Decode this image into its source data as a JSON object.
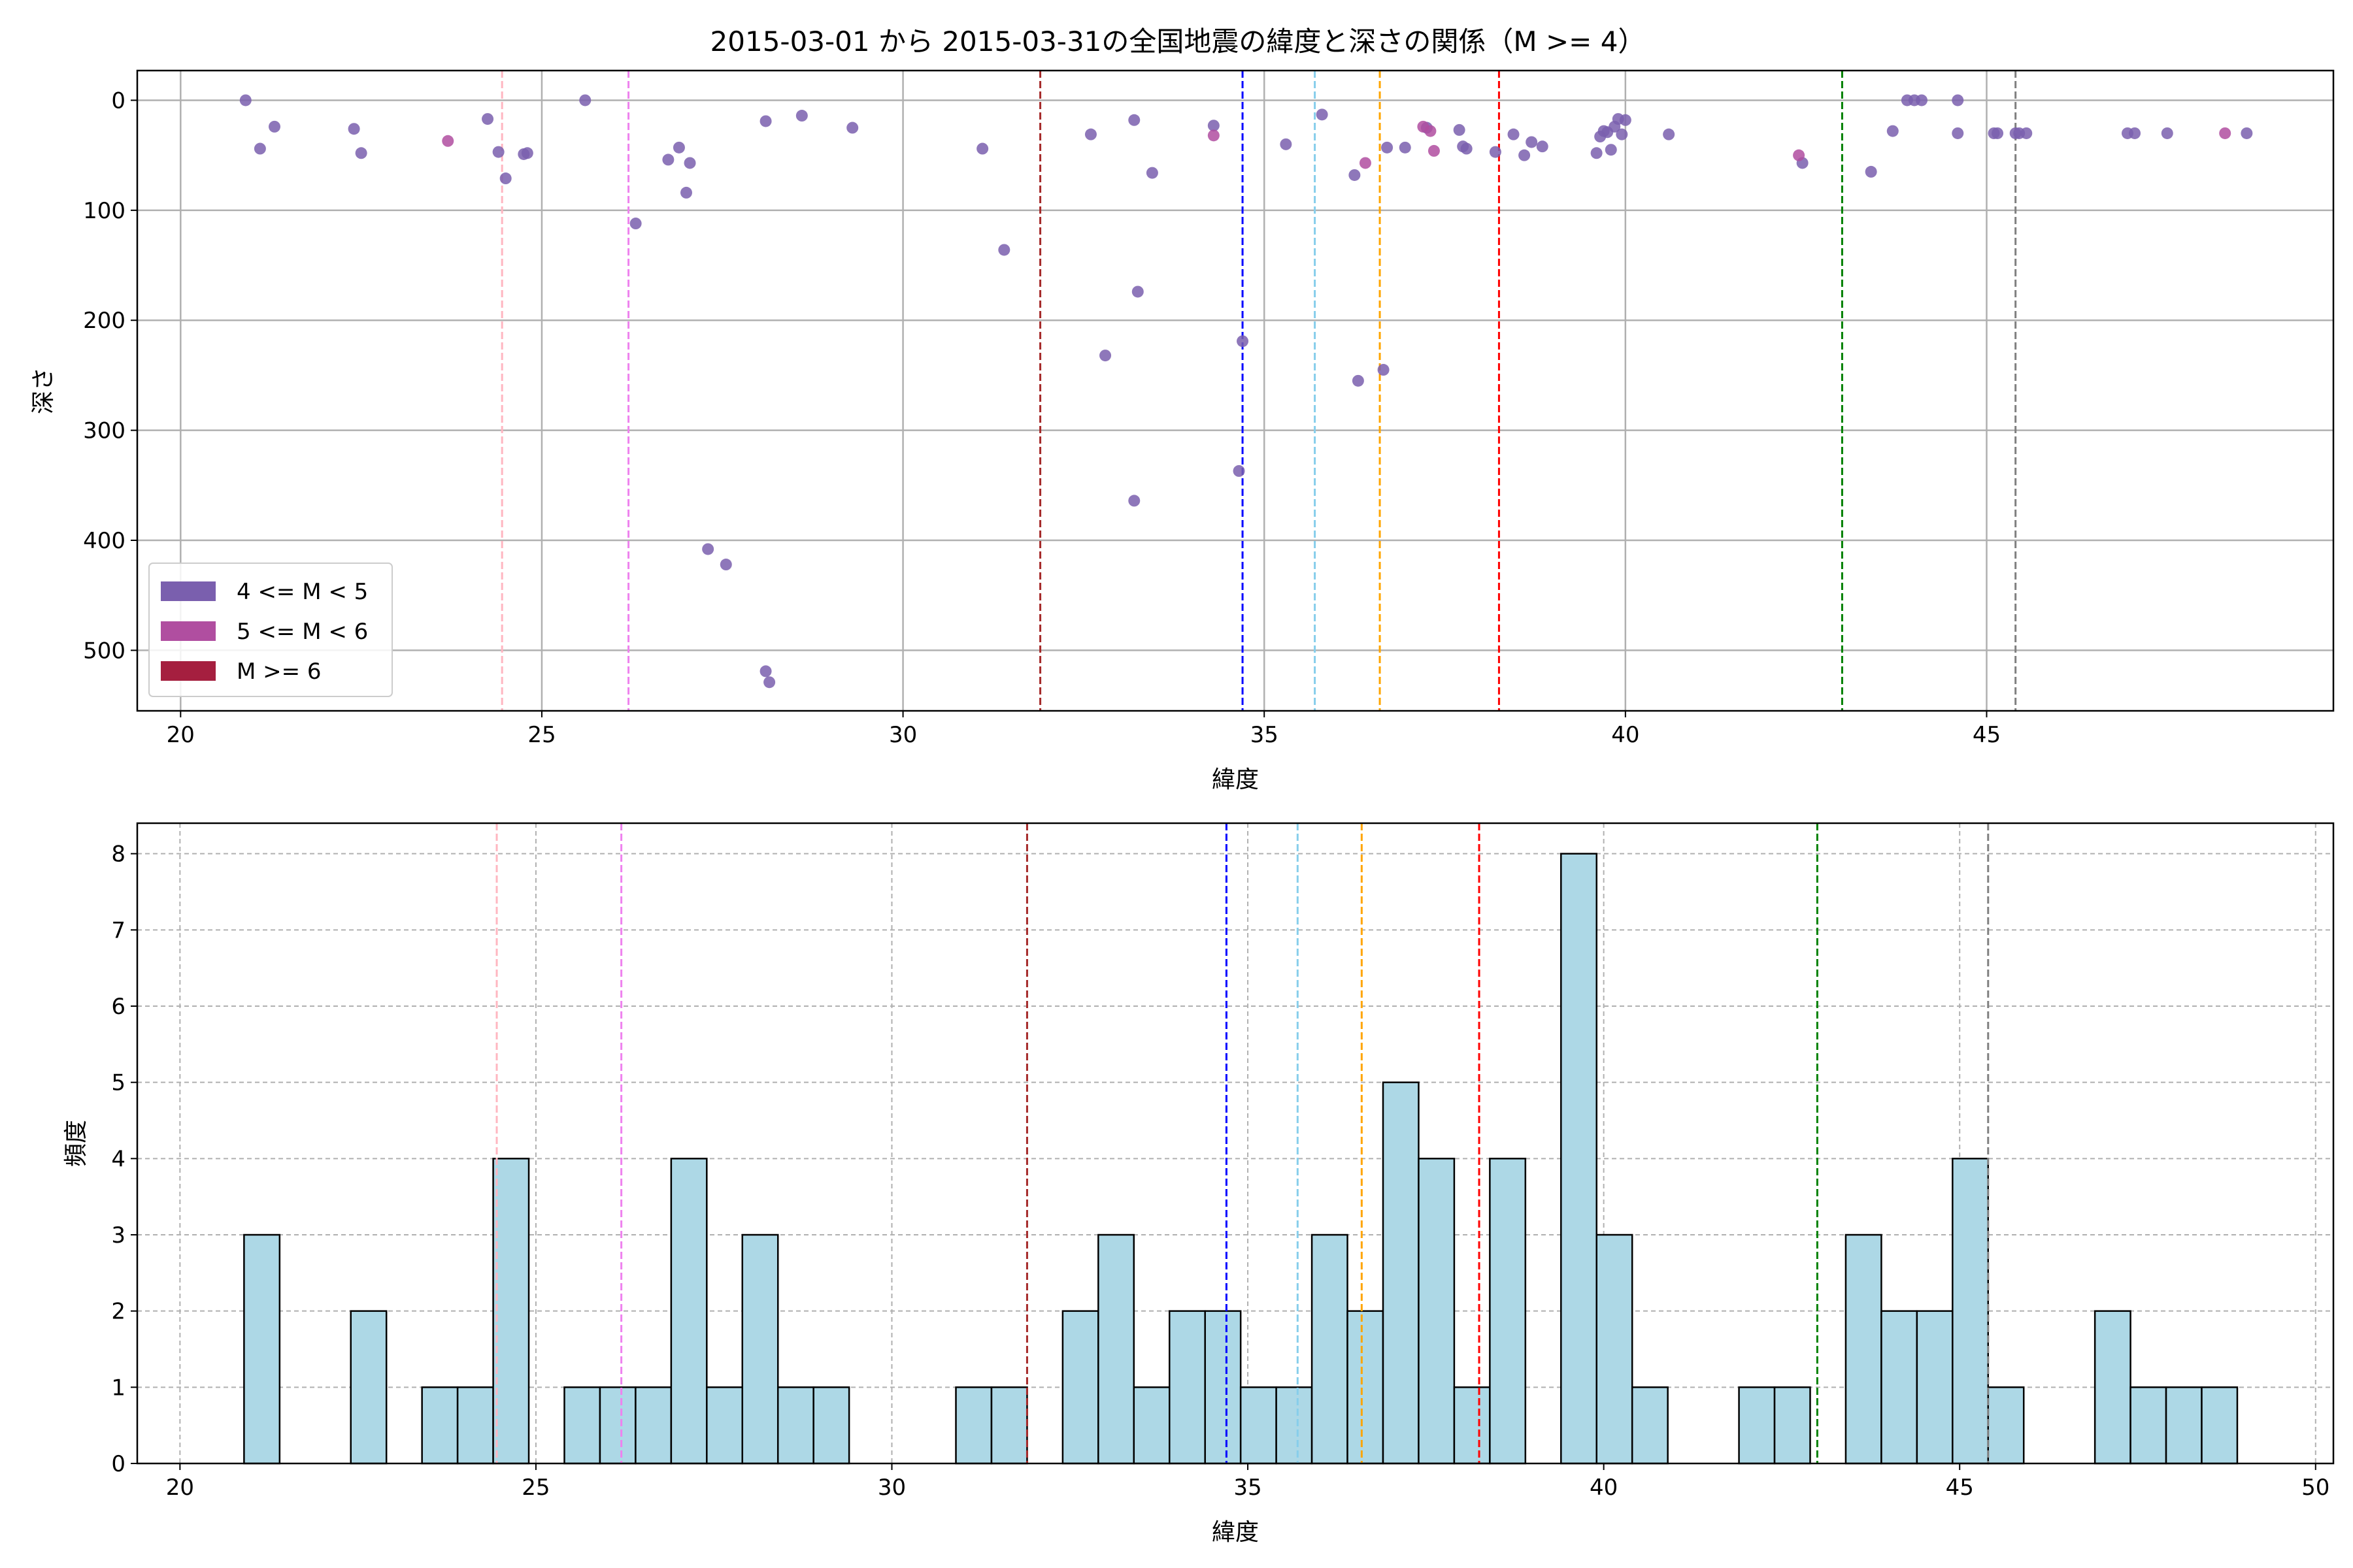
{
  "chart_data": [
    {
      "type": "scatter",
      "title": "2015-03-01 から 2015-03-31の全国地震の緯度と深さの関係（M >= 4）",
      "xlabel": "緯度",
      "ylabel": "深さ",
      "xlim": [
        19.4,
        49.8
      ],
      "ylim": [
        555,
        -27
      ],
      "y_inverted": true,
      "xticks": [
        20,
        25,
        30,
        35,
        40,
        45
      ],
      "yticks": [
        0,
        100,
        200,
        300,
        400,
        500
      ],
      "grid": true,
      "legend": {
        "placement": "lower-left",
        "entries": [
          {
            "label": "4 <= M < 5",
            "color": "#7a5fae"
          },
          {
            "label": "5 <= M < 6",
            "color": "#b04ea0"
          },
          {
            "label": "M >= 6",
            "color": "#a51f3f"
          }
        ]
      },
      "colors": {
        "4 <= M < 5": "#7a5fae",
        "5 <= M < 6": "#b04ea0",
        "M >= 6": "#a51f3f"
      },
      "vlines": [
        {
          "x": 24.45,
          "color": "#ffb6c1"
        },
        {
          "x": 26.2,
          "color": "#ee82ee"
        },
        {
          "x": 31.9,
          "color": "#a52a2a"
        },
        {
          "x": 34.7,
          "color": "#0000ff"
        },
        {
          "x": 35.7,
          "color": "#87ceeb"
        },
        {
          "x": 36.6,
          "color": "#ffa500"
        },
        {
          "x": 38.25,
          "color": "#ff0000"
        },
        {
          "x": 43.0,
          "color": "#008000"
        },
        {
          "x": 45.4,
          "color": "#808080"
        }
      ],
      "series": [
        {
          "name": "4 <= M < 5",
          "points": [
            [
              20.9,
              0
            ],
            [
              21.1,
              44
            ],
            [
              21.3,
              24
            ],
            [
              22.4,
              26
            ],
            [
              22.5,
              48
            ],
            [
              24.25,
              17
            ],
            [
              24.4,
              47
            ],
            [
              24.5,
              71
            ],
            [
              24.75,
              49
            ],
            [
              24.8,
              48
            ],
            [
              25.6,
              0
            ],
            [
              26.3,
              112
            ],
            [
              26.75,
              54
            ],
            [
              26.9,
              43
            ],
            [
              27.0,
              84
            ],
            [
              27.05,
              57
            ],
            [
              27.3,
              408
            ],
            [
              27.55,
              422
            ],
            [
              28.1,
              19
            ],
            [
              28.1,
              519
            ],
            [
              28.15,
              529
            ],
            [
              28.6,
              14
            ],
            [
              29.3,
              25
            ],
            [
              31.1,
              44
            ],
            [
              31.4,
              136
            ],
            [
              32.6,
              31
            ],
            [
              32.8,
              232
            ],
            [
              33.2,
              364
            ],
            [
              33.2,
              18
            ],
            [
              33.25,
              174
            ],
            [
              33.45,
              66
            ],
            [
              34.3,
              23
            ],
            [
              34.65,
              337
            ],
            [
              34.7,
              219
            ],
            [
              35.3,
              40
            ],
            [
              35.8,
              13
            ],
            [
              36.25,
              68
            ],
            [
              36.3,
              255
            ],
            [
              36.65,
              245
            ],
            [
              36.7,
              43
            ],
            [
              36.95,
              43
            ],
            [
              37.25,
              25
            ],
            [
              37.7,
              27
            ],
            [
              37.75,
              42
            ],
            [
              37.8,
              44
            ],
            [
              38.2,
              47
            ],
            [
              38.45,
              31
            ],
            [
              38.6,
              50
            ],
            [
              38.7,
              38
            ],
            [
              38.85,
              42
            ],
            [
              39.6,
              48
            ],
            [
              39.65,
              33
            ],
            [
              39.7,
              28
            ],
            [
              39.75,
              29
            ],
            [
              39.8,
              45
            ],
            [
              39.85,
              24
            ],
            [
              39.9,
              17
            ],
            [
              39.95,
              31
            ],
            [
              40.0,
              18
            ],
            [
              40.6,
              31
            ],
            [
              42.45,
              57
            ],
            [
              43.4,
              65
            ],
            [
              43.7,
              28
            ],
            [
              43.9,
              0
            ],
            [
              44.0,
              0
            ],
            [
              44.1,
              0
            ],
            [
              44.6,
              0
            ],
            [
              44.6,
              30
            ],
            [
              45.1,
              30
            ],
            [
              45.15,
              30
            ],
            [
              45.4,
              30
            ],
            [
              45.45,
              30
            ],
            [
              45.55,
              30
            ],
            [
              46.95,
              30
            ],
            [
              47.05,
              30
            ],
            [
              47.5,
              30
            ],
            [
              48.6,
              30
            ]
          ]
        },
        {
          "name": "5 <= M < 6",
          "points": [
            [
              23.7,
              37
            ],
            [
              34.3,
              32
            ],
            [
              36.4,
              57
            ],
            [
              37.2,
              24
            ],
            [
              37.3,
              28
            ],
            [
              37.35,
              46
            ],
            [
              42.4,
              50
            ],
            [
              48.3,
              30
            ]
          ]
        }
      ]
    },
    {
      "type": "bar",
      "xlabel": "緯度",
      "ylabel": "頻度",
      "xlim": [
        19.4,
        50.25
      ],
      "ylim": [
        0,
        8.4
      ],
      "xticks": [
        20,
        25,
        30,
        35,
        40,
        45,
        50
      ],
      "yticks": [
        0,
        1,
        2,
        3,
        4,
        5,
        6,
        7,
        8
      ],
      "grid": true,
      "bar_color": "#add8e6",
      "edge_color": "#000000",
      "bin_start": 20.9,
      "bin_width": 0.5,
      "values": [
        3,
        0,
        0,
        2,
        0,
        1,
        1,
        4,
        0,
        1,
        1,
        1,
        4,
        1,
        3,
        1,
        1,
        0,
        0,
        0,
        1,
        1,
        0,
        2,
        3,
        1,
        2,
        2,
        1,
        1,
        3,
        2,
        5,
        4,
        1,
        4,
        0,
        8,
        3,
        1,
        0,
        0,
        1,
        1,
        0,
        3,
        2,
        2,
        4,
        1,
        0,
        0,
        2,
        1,
        1,
        1
      ],
      "vlines": [
        {
          "x": 24.45,
          "color": "#ffb6c1"
        },
        {
          "x": 26.2,
          "color": "#ee82ee"
        },
        {
          "x": 31.9,
          "color": "#a52a2a"
        },
        {
          "x": 34.7,
          "color": "#0000ff"
        },
        {
          "x": 35.7,
          "color": "#87ceeb"
        },
        {
          "x": 36.6,
          "color": "#ffa500"
        },
        {
          "x": 38.25,
          "color": "#ff0000"
        },
        {
          "x": 43.0,
          "color": "#008000"
        },
        {
          "x": 45.4,
          "color": "#808080"
        }
      ]
    }
  ]
}
